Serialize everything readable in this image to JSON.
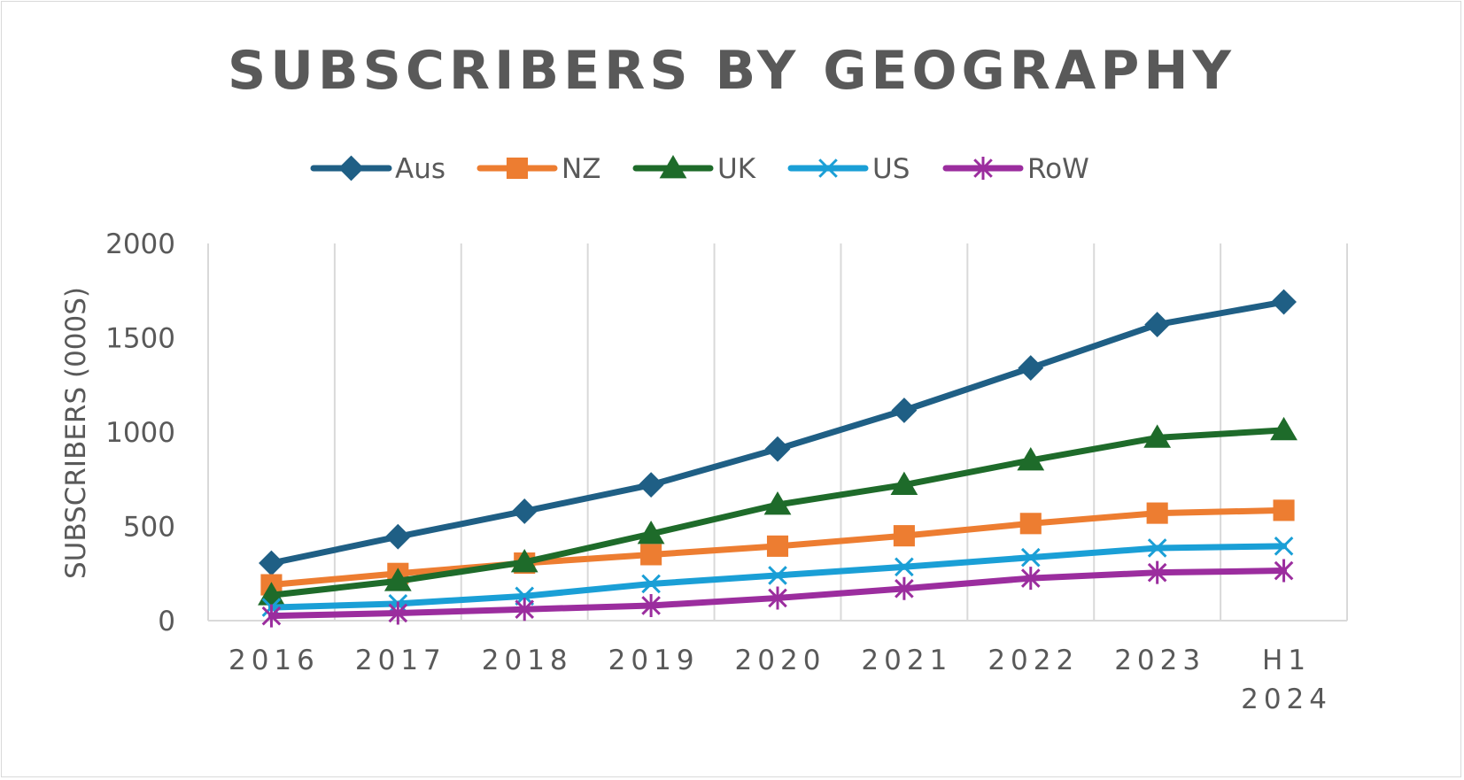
{
  "chart_data": {
    "type": "line",
    "title": "SUBSCRIBERS BY GEOGRAPHY",
    "xlabel": "",
    "ylabel": "SUBSCRIBERS (000S)",
    "categories": [
      "2016",
      "2017",
      "2018",
      "2019",
      "2020",
      "2021",
      "2022",
      "2023",
      "H1 2024"
    ],
    "ylim": [
      0,
      2000
    ],
    "yticks": [
      0,
      500,
      1000,
      1500,
      2000
    ],
    "grid": "vertical",
    "legend_position": "top",
    "series": [
      {
        "name": "Aus",
        "color": "#1f5f85",
        "marker": "diamond",
        "values": [
          305,
          445,
          580,
          720,
          910,
          1115,
          1340,
          1570,
          1690
        ]
      },
      {
        "name": "NZ",
        "color": "#ed7d31",
        "marker": "square",
        "values": [
          190,
          250,
          305,
          350,
          395,
          450,
          515,
          570,
          585
        ]
      },
      {
        "name": "UK",
        "color": "#1e6b2a",
        "marker": "triangle",
        "values": [
          135,
          210,
          310,
          460,
          615,
          720,
          850,
          970,
          1010
        ]
      },
      {
        "name": "US",
        "color": "#1a9fd6",
        "marker": "x",
        "values": [
          70,
          90,
          130,
          195,
          240,
          285,
          335,
          385,
          395
        ]
      },
      {
        "name": "RoW",
        "color": "#9b2d9e",
        "marker": "asterisk",
        "values": [
          25,
          40,
          60,
          80,
          120,
          170,
          225,
          255,
          265
        ]
      }
    ]
  }
}
